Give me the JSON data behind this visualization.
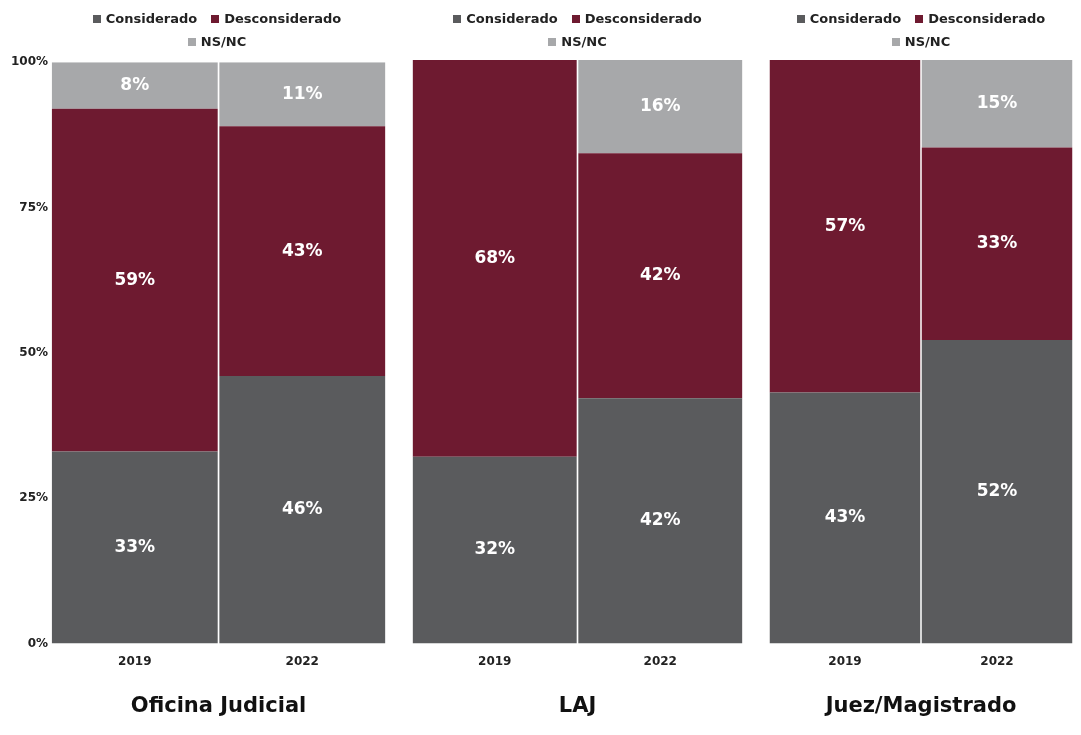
{
  "chart_data": [
    {
      "type": "bar",
      "stacked": true,
      "xlabel": "Oficina Judicial",
      "categories": [
        "2019",
        "2022"
      ],
      "ylim": [
        0,
        100
      ],
      "yticks": [
        {
          "value": 0,
          "label": "0%"
        },
        {
          "value": 25,
          "label": "25%"
        },
        {
          "value": 50,
          "label": "50%"
        },
        {
          "value": 75,
          "label": "75%"
        },
        {
          "value": 100,
          "label": "100%"
        }
      ],
      "legend": "top",
      "series": [
        {
          "name": "Considerado",
          "color": "#5a5b5d",
          "values": [
            33,
            46
          ],
          "value_labels": [
            "33%",
            "46%"
          ]
        },
        {
          "name": "Desconsiderado",
          "color": "#6e1a30",
          "values": [
            59,
            43
          ],
          "value_labels": [
            "59%",
            "43%"
          ]
        },
        {
          "name": "NS/NC",
          "color": "#a7a8aa",
          "values": [
            8,
            11
          ],
          "value_labels": [
            "8%",
            "11%"
          ]
        }
      ]
    },
    {
      "type": "bar",
      "stacked": true,
      "xlabel": "LAJ",
      "categories": [
        "2019",
        "2022"
      ],
      "ylim": [
        0,
        100
      ],
      "tick_labels": "x",
      "legend": "top",
      "series": [
        {
          "name": "Considerado",
          "color": "#5a5b5d",
          "values": [
            32,
            42
          ],
          "value_labels": [
            "32%",
            "42%"
          ]
        },
        {
          "name": "Desconsiderado",
          "color": "#6e1a30",
          "values": [
            68,
            42
          ],
          "value_labels": [
            "68%",
            "42%"
          ]
        },
        {
          "name": "NS/NC",
          "color": "#a7a8aa",
          "values": [
            null,
            16
          ],
          "value_labels": [
            null,
            "16%"
          ]
        }
      ]
    },
    {
      "type": "bar",
      "stacked": true,
      "xlabel": "Juez/Magistrado",
      "categories": [
        "2019",
        "2022"
      ],
      "ylim": [
        0,
        100
      ],
      "tick_labels": "x",
      "legend": "top",
      "series": [
        {
          "name": "Considerado",
          "color": "#5a5b5d",
          "values": [
            43,
            52
          ],
          "value_labels": [
            "43%",
            "52%"
          ]
        },
        {
          "name": "Desconsiderado",
          "color": "#6e1a30",
          "values": [
            57,
            33
          ],
          "value_labels": [
            "57%",
            "33%"
          ]
        },
        {
          "name": "NS/NC",
          "color": "#a7a8aa",
          "values": [
            null,
            15
          ],
          "value_labels": [
            null,
            "15%"
          ]
        }
      ]
    }
  ]
}
